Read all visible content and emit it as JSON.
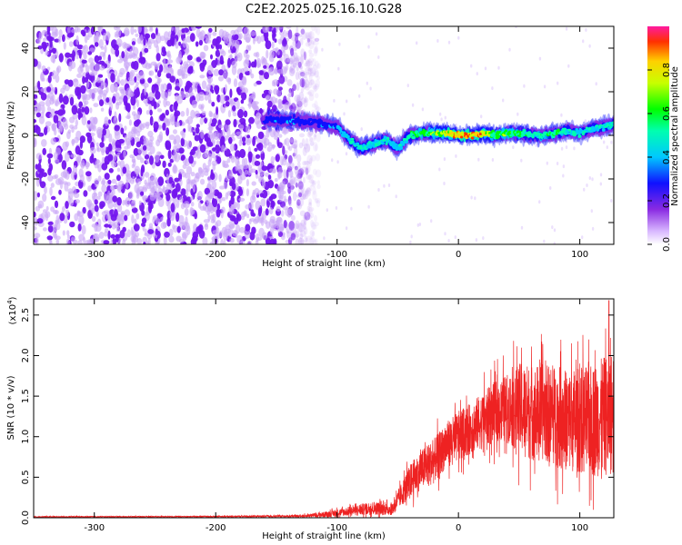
{
  "title": "C2E2.2025.025.16.10.G28",
  "colors": {
    "snr_line": "#ee2222",
    "frame": "#000000",
    "noise": "#7a1cf0",
    "background": "#ffffff"
  },
  "chart_data": [
    {
      "type": "heatmap",
      "name": "spectrogram",
      "xlabel": "Height of straight line (km)",
      "ylabel": "Frequency (Hz)",
      "xlim": [
        -350,
        128
      ],
      "ylim": [
        -50,
        50
      ],
      "xticks": [
        -300,
        -200,
        -100,
        0,
        100
      ],
      "yticks": [
        -40,
        -20,
        0,
        20,
        40
      ],
      "colorbar": {
        "label": "Normalized spectral amplitude",
        "ticks": [
          0.0,
          0.2,
          0.4,
          0.6,
          0.8
        ],
        "tick_labels": [
          "0.0",
          "0.2",
          "0.4",
          "0.6",
          "0.8"
        ],
        "range": [
          0,
          1
        ]
      },
      "ridge": {
        "x": [
          -160,
          -140,
          -120,
          -100,
          -90,
          -80,
          -70,
          -60,
          -50,
          -40,
          -30,
          -20,
          -10,
          0,
          10,
          20,
          30,
          40,
          50,
          60,
          70,
          80,
          90,
          100,
          110,
          120,
          128
        ],
        "freq": [
          7,
          7,
          6,
          4,
          -2,
          -6,
          -4,
          -2,
          -6,
          0,
          1,
          1,
          1,
          0,
          0,
          1,
          0,
          1,
          1,
          0,
          0,
          1,
          2,
          1,
          3,
          4,
          5
        ],
        "amplitude": [
          0.25,
          0.28,
          0.25,
          0.3,
          0.4,
          0.45,
          0.4,
          0.42,
          0.35,
          0.5,
          0.55,
          0.6,
          0.7,
          0.85,
          0.85,
          0.8,
          0.55,
          0.6,
          0.55,
          0.45,
          0.5,
          0.5,
          0.45,
          0.45,
          0.4,
          0.45,
          0.45
        ]
      },
      "noise_region": {
        "x_start": -350,
        "x_end": -125
      }
    },
    {
      "type": "line",
      "name": "snr",
      "xlabel": "Height of straight line (km)",
      "ylabel": "SNR (10 * v/v)",
      "ylabel_multiplier": "(x10",
      "ylabel_exponent": "4",
      "ylabel_close": ")",
      "xlim": [
        -350,
        128
      ],
      "ylim": [
        0,
        2.7
      ],
      "xticks": [
        -300,
        -200,
        -100,
        0,
        100
      ],
      "yticks": [
        0.0,
        0.5,
        1.0,
        1.5,
        2.0,
        2.5
      ],
      "ytick_labels": [
        "0.0",
        "0.5",
        "1.0",
        "1.5",
        "2.0",
        "2.5"
      ],
      "envelope": {
        "x": [
          -350,
          -200,
          -130,
          -110,
          -90,
          -70,
          -55,
          -40,
          -30,
          -20,
          -10,
          0,
          10,
          20,
          30,
          40,
          50,
          60,
          70,
          80,
          90,
          100,
          110,
          120,
          128
        ],
        "mean": [
          0.01,
          0.015,
          0.02,
          0.04,
          0.08,
          0.12,
          0.1,
          0.45,
          0.6,
          0.7,
          0.9,
          1.0,
          1.1,
          1.2,
          1.3,
          1.35,
          1.35,
          1.3,
          1.3,
          1.25,
          1.2,
          1.2,
          1.2,
          1.25,
          1.3
        ],
        "spread": [
          0.01,
          0.01,
          0.02,
          0.05,
          0.08,
          0.12,
          0.1,
          0.3,
          0.35,
          0.4,
          0.4,
          0.45,
          0.45,
          0.5,
          0.55,
          0.6,
          0.8,
          0.85,
          0.85,
          0.9,
          0.9,
          0.95,
          1.0,
          1.05,
          1.1
        ]
      },
      "peak": {
        "x": 124,
        "y": 2.68
      }
    }
  ]
}
